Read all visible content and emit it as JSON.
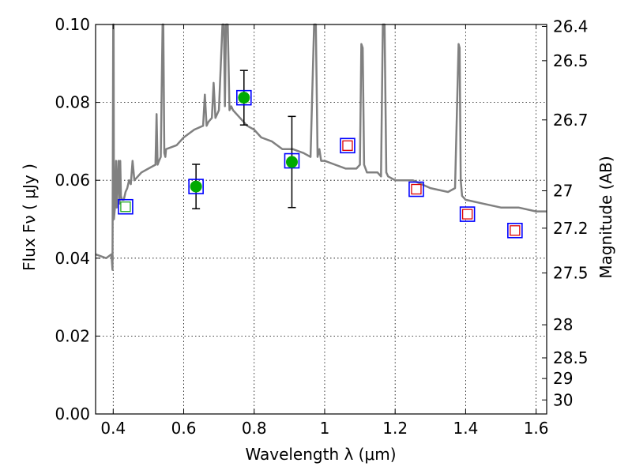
{
  "chart_data": {
    "type": "scatter",
    "xlabel": "Wavelength  λ (μm)",
    "ylabel": "Flux  Fν  ( μJy )",
    "y2label": "Magnitude (AB)",
    "xlim": [
      0.35,
      1.63
    ],
    "ylim": [
      0.0,
      0.1
    ],
    "grid": true,
    "x_ticks": [
      0.4,
      0.6,
      0.8,
      1.0,
      1.2,
      1.4,
      1.6
    ],
    "x_tick_labels": [
      "0.4",
      "0.6",
      "0.8",
      "1",
      "1.2",
      "1.4",
      "1.6"
    ],
    "y_ticks": [
      0.0,
      0.02,
      0.04,
      0.06,
      0.08,
      0.1
    ],
    "y_tick_labels": [
      "0.00",
      "0.02",
      "0.04",
      "0.06",
      "0.08",
      "0.10"
    ],
    "mag_ticks": [
      {
        "label": "26.4",
        "flux": 0.0995
      },
      {
        "label": "26.5",
        "flux": 0.0907
      },
      {
        "label": "26.7",
        "flux": 0.0755
      },
      {
        "label": "27",
        "flux": 0.0573
      },
      {
        "label": "27.2",
        "flux": 0.0477
      },
      {
        "label": "27.5",
        "flux": 0.0362
      },
      {
        "label": "28",
        "flux": 0.0229
      },
      {
        "label": "28.5",
        "flux": 0.0144
      },
      {
        "label": "29",
        "flux": 0.0091
      },
      {
        "label": "30",
        "flux": 0.0036
      }
    ],
    "series": [
      {
        "marker": "model-spectrum",
        "color": "#808080",
        "x": [
          0.35,
          0.38,
          0.395,
          0.398,
          0.4,
          0.401,
          0.402,
          0.403,
          0.405,
          0.408,
          0.41,
          0.415,
          0.418,
          0.42,
          0.422,
          0.425,
          0.43,
          0.435,
          0.44,
          0.445,
          0.45,
          0.455,
          0.46,
          0.47,
          0.48,
          0.5,
          0.52,
          0.523,
          0.526,
          0.53,
          0.535,
          0.54,
          0.542,
          0.545,
          0.548,
          0.55,
          0.58,
          0.6,
          0.63,
          0.655,
          0.66,
          0.665,
          0.67,
          0.68,
          0.685,
          0.69,
          0.7,
          0.71,
          0.714,
          0.717,
          0.72,
          0.725,
          0.73,
          0.735,
          0.74,
          0.76,
          0.78,
          0.8,
          0.82,
          0.85,
          0.88,
          0.91,
          0.94,
          0.96,
          0.97,
          0.975,
          0.98,
          0.985,
          0.99,
          1.0,
          1.03,
          1.06,
          1.09,
          1.1,
          1.104,
          1.108,
          1.112,
          1.12,
          1.15,
          1.16,
          1.165,
          1.17,
          1.175,
          1.18,
          1.2,
          1.25,
          1.3,
          1.35,
          1.37,
          1.38,
          1.383,
          1.386,
          1.39,
          1.4,
          1.45,
          1.5,
          1.55,
          1.6,
          1.63
        ],
        "y": [
          0.041,
          0.04,
          0.041,
          0.037,
          0.1,
          0.1,
          0.05,
          0.051,
          0.053,
          0.065,
          0.053,
          0.065,
          0.054,
          0.065,
          0.056,
          0.055,
          0.055,
          0.057,
          0.058,
          0.06,
          0.059,
          0.065,
          0.06,
          0.061,
          0.062,
          0.063,
          0.064,
          0.077,
          0.064,
          0.065,
          0.066,
          0.1,
          0.1,
          0.067,
          0.066,
          0.068,
          0.069,
          0.071,
          0.073,
          0.074,
          0.082,
          0.074,
          0.075,
          0.076,
          0.085,
          0.076,
          0.078,
          0.1,
          0.1,
          0.079,
          0.1,
          0.1,
          0.078,
          0.079,
          0.078,
          0.076,
          0.074,
          0.073,
          0.071,
          0.07,
          0.068,
          0.068,
          0.067,
          0.066,
          0.1,
          0.1,
          0.066,
          0.068,
          0.065,
          0.065,
          0.064,
          0.063,
          0.063,
          0.064,
          0.095,
          0.094,
          0.064,
          0.062,
          0.062,
          0.061,
          0.1,
          0.1,
          0.062,
          0.061,
          0.06,
          0.06,
          0.058,
          0.057,
          0.058,
          0.095,
          0.094,
          0.06,
          0.056,
          0.055,
          0.054,
          0.053,
          0.053,
          0.052,
          0.052
        ]
      },
      {
        "marker": "model-photometry-blue-squares",
        "color": "#0000ff",
        "x": [
          0.435,
          0.635,
          0.771,
          0.907,
          1.065,
          1.26,
          1.405,
          1.54
        ],
        "y": [
          0.0532,
          0.0584,
          0.0812,
          0.065,
          0.0689,
          0.0577,
          0.0513,
          0.0471
        ]
      },
      {
        "marker": "observed-detections-green-circles",
        "color": "#00aa00",
        "x": [
          0.635,
          0.771,
          0.907
        ],
        "y": [
          0.0584,
          0.0812,
          0.0647
        ],
        "yerr": [
          0.0057,
          0.007,
          0.0117
        ]
      },
      {
        "marker": "limits-hollow-squares",
        "colors": [
          "#22aa22",
          "#dd0000",
          "#dd0000",
          "#dd0000",
          "#dd0000"
        ],
        "x": [
          0.435,
          1.065,
          1.26,
          1.405,
          1.54
        ],
        "y": [
          0.0532,
          0.0689,
          0.0577,
          0.0513,
          0.0471
        ]
      }
    ]
  }
}
